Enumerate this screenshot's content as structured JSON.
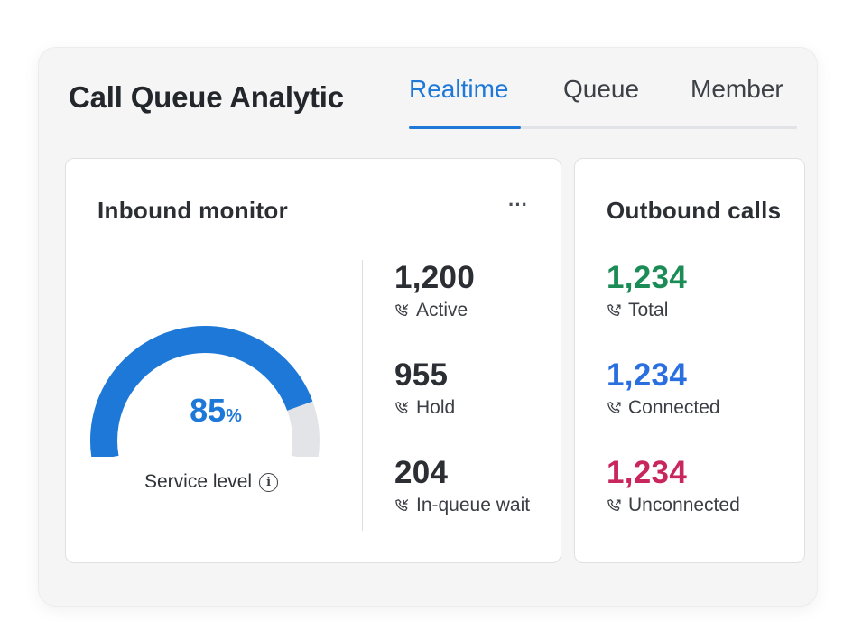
{
  "app": {
    "title": "Call Queue Analytic"
  },
  "tabs": [
    {
      "label": "Realtime",
      "active": true
    },
    {
      "label": "Queue",
      "active": false
    },
    {
      "label": "Member",
      "active": false
    }
  ],
  "inbound": {
    "title": "Inbound monitor",
    "more_label": "···",
    "gauge": {
      "value": "85",
      "unit": "%",
      "fraction": 0.85,
      "caption": "Service level",
      "info_icon": "i"
    },
    "stats": [
      {
        "value": "1,200",
        "label": "Active"
      },
      {
        "value": "955",
        "label": "Hold"
      },
      {
        "value": "204",
        "label": "In-queue wait"
      }
    ]
  },
  "outbound": {
    "title": "Outbound calls",
    "stats": [
      {
        "value": "1,234",
        "label": "Total",
        "color": "#1c8c57"
      },
      {
        "value": "1,234",
        "label": "Connected",
        "color": "#2a6fe0"
      },
      {
        "value": "1,234",
        "label": "Unconnected",
        "color": "#c8265c"
      }
    ]
  },
  "colors": {
    "accent": "#1e78d8",
    "gauge_track": "#e3e4e7"
  },
  "icons": {
    "stat_icon": "phone-icon",
    "info": "info-icon",
    "more": "more-icon"
  }
}
